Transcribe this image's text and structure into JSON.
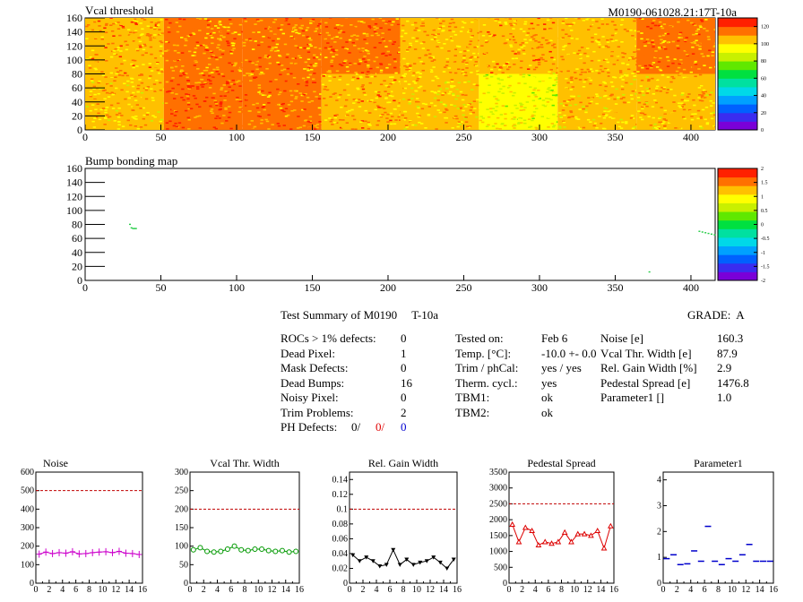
{
  "module_id": "M0190-061028.21:17T-10a",
  "colors": {
    "palette": [
      "#7a00d8",
      "#3a2cf0",
      "#0060ff",
      "#00a0ff",
      "#00d8e8",
      "#00e0a0",
      "#00e040",
      "#60e800",
      "#c8f000",
      "#ffff00",
      "#ffc000",
      "#ff7000",
      "#ff2000"
    ],
    "ref_line": "#c00000",
    "noise": "#cc00cc",
    "vcal": "#009900",
    "gain": "#000000",
    "pedestal": "#dd0000",
    "param1": "#0000cc"
  },
  "summary": {
    "title": "Test Summary of M0190",
    "title_suffix": "T-10a",
    "grade_label": "GRADE:",
    "grade": "A",
    "left": [
      {
        "label": "ROCs > 1% defects:",
        "value": "0"
      },
      {
        "label": "Dead Pixel:",
        "value": "1"
      },
      {
        "label": "Mask Defects:",
        "value": "0"
      },
      {
        "label": "Dead Bumps:",
        "value": "16"
      },
      {
        "label": "Noisy Pixel:",
        "value": "0"
      },
      {
        "label": "Trim Problems:",
        "value": "2"
      }
    ],
    "ph_label": "PH Defects:",
    "ph_values": [
      "0/",
      "0/",
      "0"
    ],
    "middle": [
      {
        "label": "Tested on:",
        "value": "Feb 6"
      },
      {
        "label": "Temp. [°C]:",
        "value": "-10.0 +- 0.0"
      },
      {
        "label": "Trim / phCal:",
        "value": "yes / yes"
      },
      {
        "label": "Therm. cycl.:",
        "value": "yes"
      },
      {
        "label": "TBM1:",
        "value": "ok"
      },
      {
        "label": "TBM2:",
        "value": "ok"
      }
    ],
    "right": [
      {
        "label": "Noise [e]",
        "value": "160.3"
      },
      {
        "label": "Vcal Thr. Width [e]",
        "value": "87.9"
      },
      {
        "label": "Rel. Gain Width [%]",
        "value": "2.9"
      },
      {
        "label": "Pedestal Spread [e]",
        "value": "1476.8"
      },
      {
        "label": "Parameter1 []",
        "value": "1.0"
      }
    ]
  },
  "chart_data": [
    {
      "type": "heatmap",
      "title": "Vcal threshold",
      "x_ticks": [
        0,
        50,
        100,
        150,
        200,
        250,
        300,
        350,
        400
      ],
      "y_ticks": [
        0,
        20,
        40,
        60,
        80,
        100,
        120,
        140,
        160
      ],
      "xlim": [
        0,
        416
      ],
      "ylim": [
        0,
        160
      ],
      "z_ticks": [
        0,
        20,
        40,
        60,
        80,
        100,
        120
      ],
      "zlim": [
        0,
        130
      ],
      "roc_mean_thresholds_top": [
        108,
        110,
        110,
        112,
        105,
        108,
        105,
        110
      ],
      "roc_mean_thresholds_bottom": [
        103,
        118,
        113,
        107,
        101,
        92,
        101,
        103
      ]
    },
    {
      "type": "heatmap",
      "title": "Bump bonding map",
      "x_ticks": [
        0,
        50,
        100,
        150,
        200,
        250,
        300,
        350,
        400
      ],
      "y_ticks": [
        0,
        20,
        40,
        60,
        80,
        100,
        120,
        140,
        160
      ],
      "xlim": [
        0,
        416
      ],
      "ylim": [
        0,
        160
      ],
      "z_ticks": [
        "-2",
        "-1.5",
        "-1",
        "-0.5",
        "0",
        "0.5",
        "1",
        "1.5",
        "2"
      ],
      "zlim": [
        -2,
        2
      ],
      "points": [
        [
          29,
          81
        ],
        [
          30,
          76
        ],
        [
          31,
          75
        ],
        [
          32,
          75
        ],
        [
          33,
          75
        ],
        [
          372,
          13
        ],
        [
          405,
          71
        ],
        [
          407,
          70
        ],
        [
          409,
          69
        ],
        [
          411,
          68
        ],
        [
          413,
          67
        ],
        [
          415,
          66
        ]
      ]
    },
    {
      "type": "line",
      "title": "Noise",
      "x_ticks": [
        0,
        2,
        4,
        6,
        8,
        10,
        12,
        14,
        16
      ],
      "xlim": [
        0,
        16
      ],
      "y_ticks": [
        0,
        100,
        200,
        300,
        400,
        500,
        600
      ],
      "ylim": [
        0,
        600
      ],
      "ref_line": 500,
      "marker": "cross",
      "values": [
        157,
        168,
        160,
        165,
        162,
        170,
        158,
        160,
        165,
        168,
        170,
        165,
        172,
        162,
        160,
        155
      ]
    },
    {
      "type": "line",
      "title": "Vcal Thr. Width",
      "x_ticks": [
        0,
        2,
        4,
        6,
        8,
        10,
        12,
        14,
        16
      ],
      "xlim": [
        0,
        16
      ],
      "y_ticks": [
        0,
        50,
        100,
        150,
        200,
        250,
        300
      ],
      "ylim": [
        0,
        300
      ],
      "ref_line": 200,
      "marker": "open-circle",
      "values": [
        90,
        96,
        86,
        84,
        86,
        92,
        100,
        90,
        88,
        92,
        92,
        88,
        86,
        88,
        84,
        86
      ]
    },
    {
      "type": "line",
      "title": "Rel. Gain Width",
      "x_ticks": [
        0,
        2,
        4,
        6,
        8,
        10,
        12,
        14,
        16
      ],
      "xlim": [
        0,
        16
      ],
      "y_ticks": [
        0,
        0.02,
        0.04,
        0.06,
        0.08,
        0.1,
        0.12,
        0.14
      ],
      "ylim": [
        0,
        0.15
      ],
      "ref_line": 0.1,
      "marker": "down-triangle",
      "values": [
        0.038,
        0.03,
        0.035,
        0.03,
        0.023,
        0.025,
        0.045,
        0.025,
        0.032,
        0.025,
        0.028,
        0.03,
        0.035,
        0.028,
        0.02,
        0.032
      ]
    },
    {
      "type": "line",
      "title": "Pedestal Spread",
      "x_ticks": [
        0,
        2,
        4,
        6,
        8,
        10,
        12,
        14,
        16
      ],
      "xlim": [
        0,
        16
      ],
      "y_ticks": [
        0,
        500,
        1000,
        1500,
        2000,
        2500,
        3000,
        3500
      ],
      "ylim": [
        0,
        3500
      ],
      "ref_line": 2500,
      "marker": "open-triangle",
      "values": [
        1850,
        1300,
        1750,
        1650,
        1200,
        1300,
        1250,
        1300,
        1600,
        1300,
        1550,
        1550,
        1500,
        1650,
        1100,
        1800
      ]
    },
    {
      "type": "scatter",
      "title": "Parameter1",
      "x_ticks": [
        0,
        2,
        4,
        6,
        8,
        10,
        12,
        14,
        16
      ],
      "xlim": [
        0,
        16
      ],
      "y_ticks": [
        0,
        1,
        2,
        3,
        4
      ],
      "ylim": [
        0,
        4.3
      ],
      "marker": "hbar",
      "values": [
        0.95,
        1.1,
        0.72,
        0.75,
        1.25,
        0.85,
        2.2,
        0.85,
        0.72,
        0.95,
        0.85,
        1.1,
        1.5,
        0.85,
        0.85,
        0.85
      ]
    }
  ]
}
